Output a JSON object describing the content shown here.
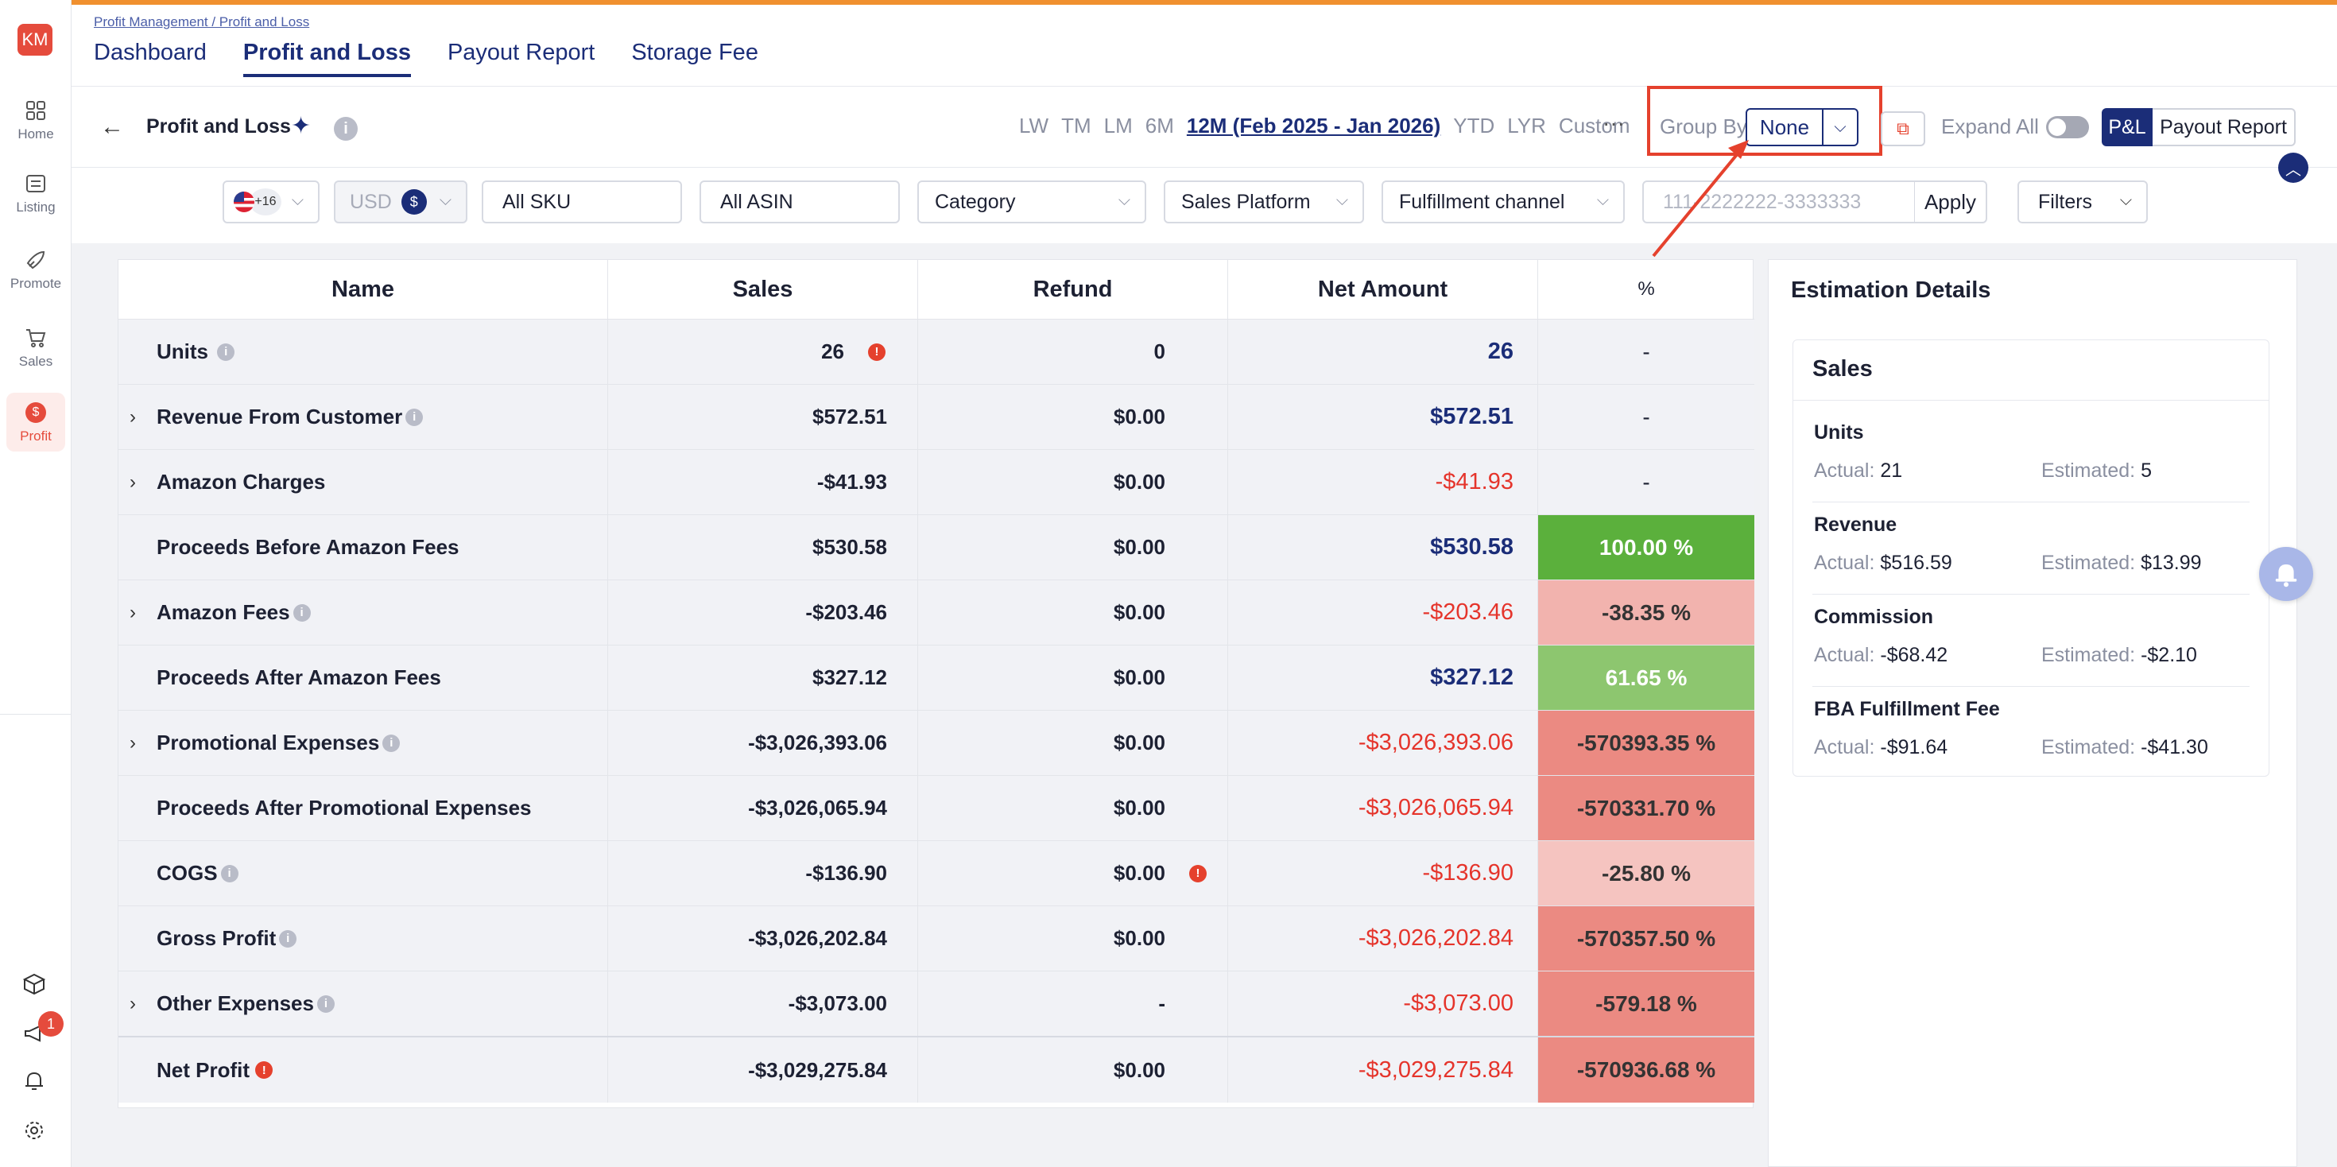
{
  "sidebar": {
    "avatar_initials": "KM",
    "items": [
      {
        "label": "Home"
      },
      {
        "label": "Listing"
      },
      {
        "label": "Promote"
      },
      {
        "label": "Sales"
      },
      {
        "label": "Profit"
      }
    ],
    "notification_count": "1"
  },
  "header": {
    "breadcrumb": "Profit Management / Profit and Loss",
    "tabs": [
      {
        "label": "Dashboard"
      },
      {
        "label": "Profit and Loss"
      },
      {
        "label": "Payout Report"
      },
      {
        "label": "Storage Fee"
      }
    ]
  },
  "toolbar": {
    "title": "Profit and Loss",
    "periods": [
      "LW",
      "TM",
      "LM",
      "6M",
      "12M (Feb 2025 - Jan 2026)",
      "YTD",
      "LYR",
      "Custom"
    ],
    "more": "···",
    "group_by_label": "Group By",
    "group_by_value": "None",
    "expand_all_label": "Expand All",
    "pl_label": "P&L",
    "payout_report_label": "Payout Report"
  },
  "filters": {
    "marketplace_extra": "+16",
    "currency": "USD",
    "currency_symbol": "$",
    "sku": "All SKU",
    "asin": "All ASIN",
    "category": "Category",
    "sales_platform": "Sales Platform",
    "fulfillment": "Fulfillment channel",
    "order_placeholder": "111-2222222-3333333",
    "apply": "Apply",
    "filters_btn": "Filters"
  },
  "table": {
    "headers": {
      "name": "Name",
      "sales": "Sales",
      "refund": "Refund",
      "net": "Net Amount",
      "pct": "%"
    },
    "rows": [
      {
        "name": "Units",
        "sales": "26",
        "refund": "0",
        "net": "26",
        "pct": "-"
      },
      {
        "name": "Revenue From Customer",
        "sales": "$572.51",
        "refund": "$0.00",
        "net": "$572.51",
        "pct": "-"
      },
      {
        "name": "Amazon Charges",
        "sales": "-$41.93",
        "refund": "$0.00",
        "net": "-$41.93",
        "pct": "-"
      },
      {
        "name": "Proceeds Before Amazon Fees",
        "sales": "$530.58",
        "refund": "$0.00",
        "net": "$530.58",
        "pct": "100.00 %"
      },
      {
        "name": "Amazon Fees",
        "sales": "-$203.46",
        "refund": "$0.00",
        "net": "-$203.46",
        "pct": "-38.35 %"
      },
      {
        "name": "Proceeds After Amazon Fees",
        "sales": "$327.12",
        "refund": "$0.00",
        "net": "$327.12",
        "pct": "61.65 %"
      },
      {
        "name": "Promotional Expenses",
        "sales": "-$3,026,393.06",
        "refund": "$0.00",
        "net": "-$3,026,393.06",
        "pct": "-570393.35 %"
      },
      {
        "name": "Proceeds After Promotional Expenses",
        "sales": "-$3,026,065.94",
        "refund": "$0.00",
        "net": "-$3,026,065.94",
        "pct": "-570331.70 %"
      },
      {
        "name": "COGS",
        "sales": "-$136.90",
        "refund": "$0.00",
        "net": "-$136.90",
        "pct": "-25.80 %"
      },
      {
        "name": "Gross Profit",
        "sales": "-$3,026,202.84",
        "refund": "$0.00",
        "net": "-$3,026,202.84",
        "pct": "-570357.50 %"
      },
      {
        "name": "Other Expenses",
        "sales": "-$3,073.00",
        "refund": "-",
        "net": "-$3,073.00",
        "pct": "-579.18 %"
      },
      {
        "name": "Net Profit",
        "sales": "-$3,029,275.84",
        "refund": "$0.00",
        "net": "-$3,029,275.84",
        "pct": "-570936.68 %"
      }
    ]
  },
  "estimation": {
    "title": "Estimation Details",
    "section_title": "Sales",
    "actual_label": "Actual:",
    "estimated_label": "Estimated:",
    "items": [
      {
        "name": "Units",
        "actual": "21",
        "estimated": "5"
      },
      {
        "name": "Revenue",
        "actual": "$516.59",
        "estimated": "$13.99"
      },
      {
        "name": "Commission",
        "actual": "-$68.42",
        "estimated": "-$2.10"
      },
      {
        "name": "FBA Fulfillment Fee",
        "actual": "-$91.64",
        "estimated": "-$41.30"
      }
    ]
  },
  "colors": {
    "accent": "#f0902f",
    "brand": "#1b2d78",
    "alert": "#e5412d"
  }
}
